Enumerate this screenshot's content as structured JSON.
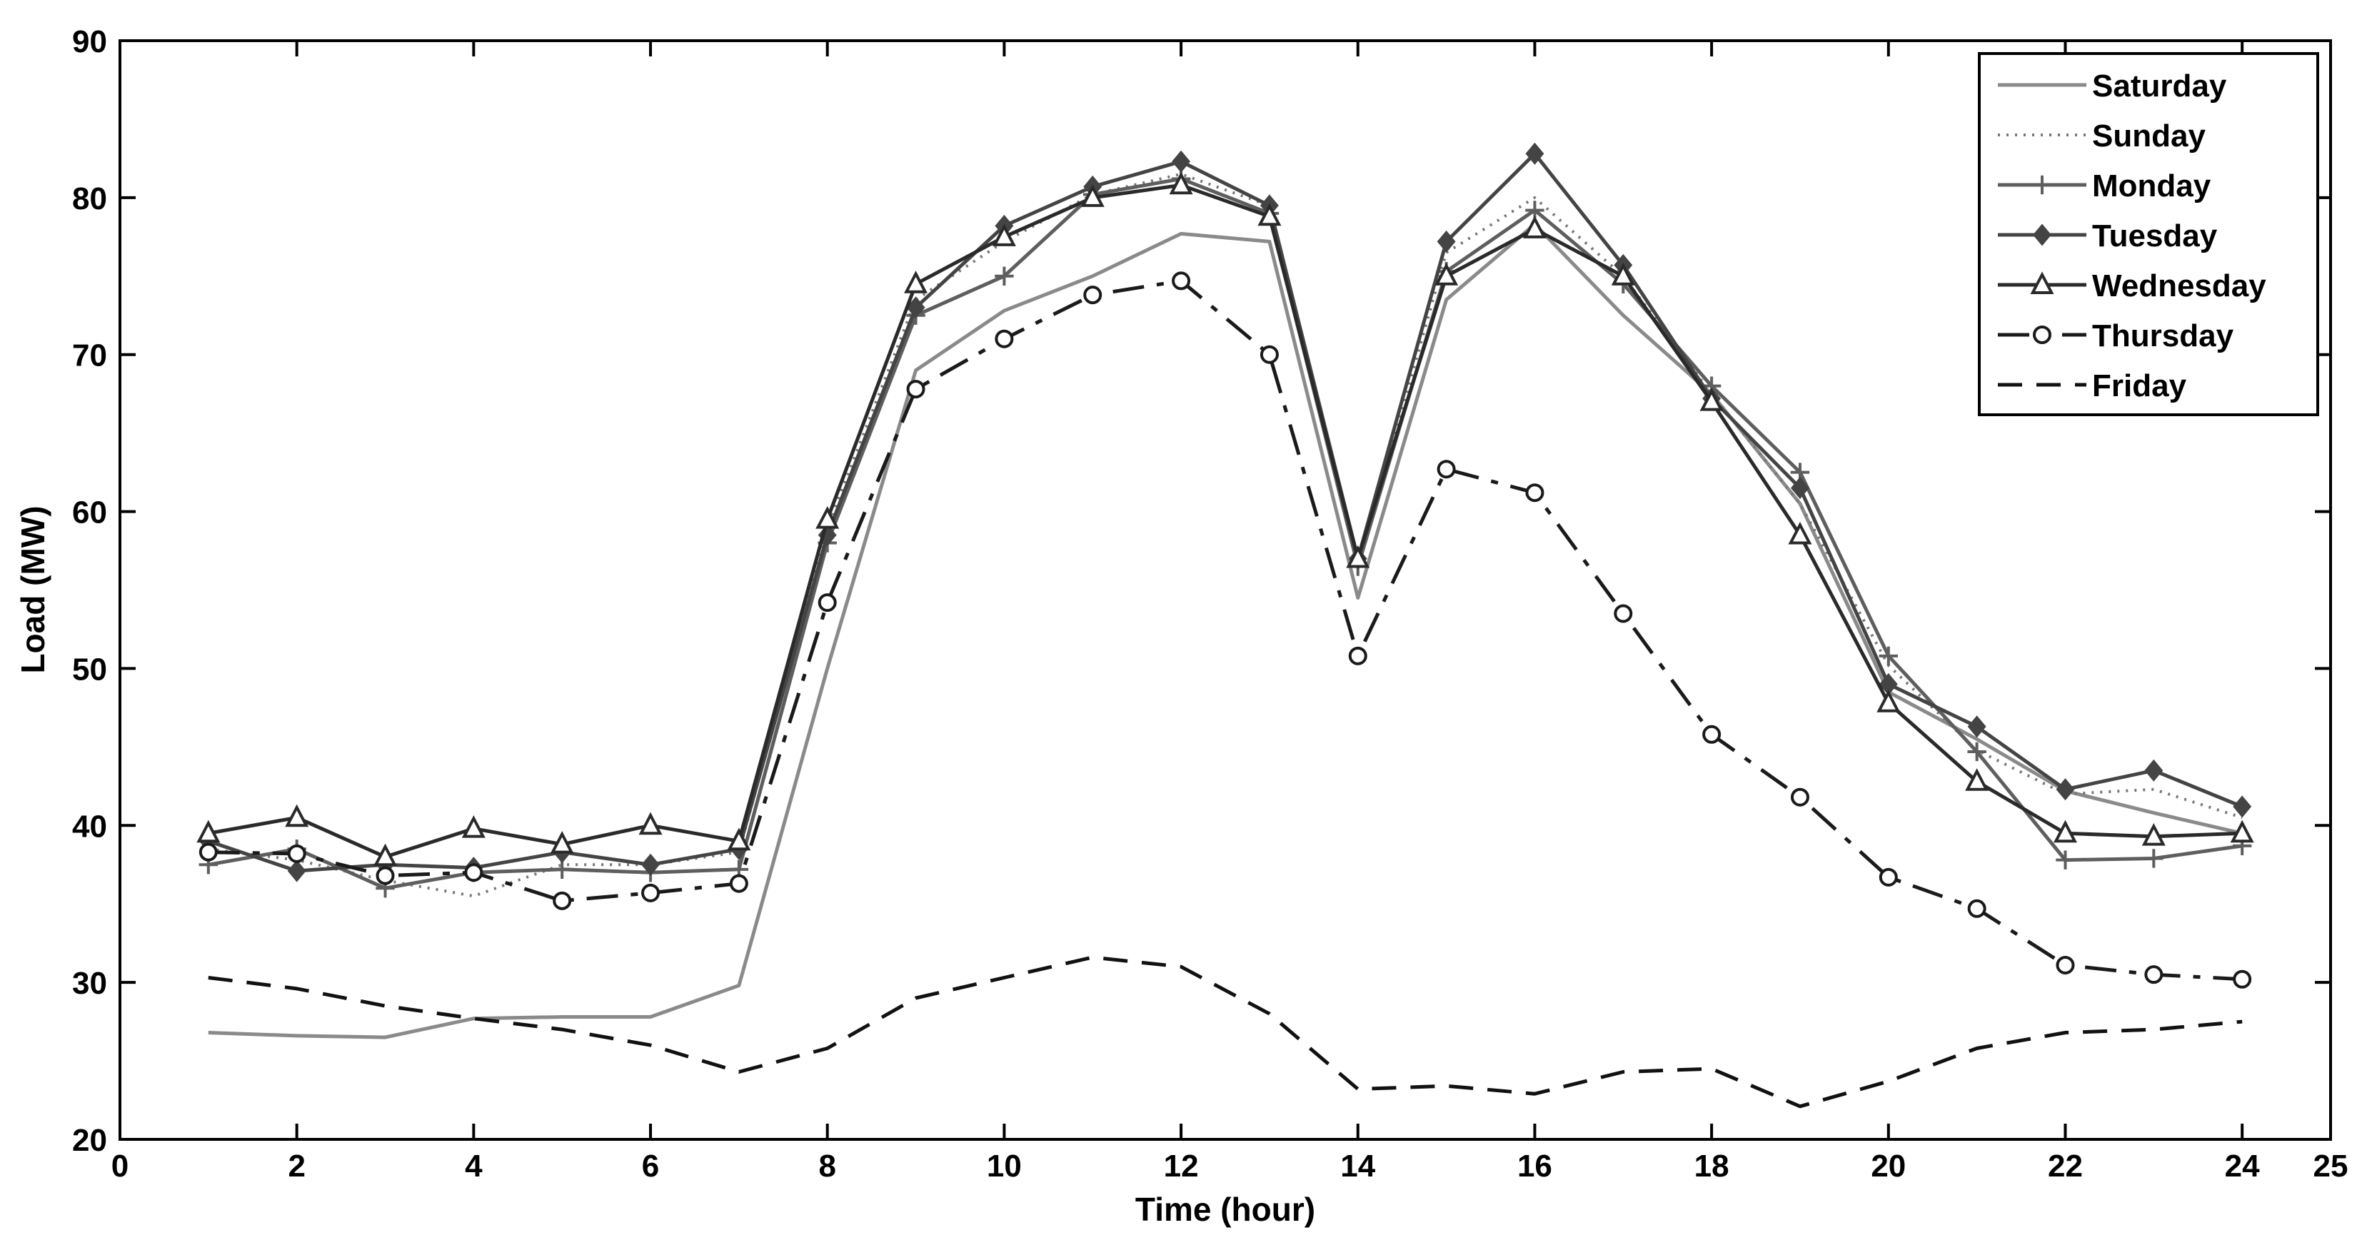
{
  "chart_data": {
    "type": "line",
    "title": "",
    "xlabel": "Time (hour)",
    "ylabel": "Load (MW)",
    "xlim": [
      0,
      25
    ],
    "ylim": [
      20,
      90
    ],
    "xticks": [
      0,
      2,
      4,
      6,
      8,
      10,
      12,
      14,
      16,
      18,
      20,
      22,
      24,
      25
    ],
    "yticks": [
      20,
      30,
      40,
      50,
      60,
      70,
      80,
      90
    ],
    "grid": false,
    "legend_position": "top-right",
    "x": [
      1,
      2,
      3,
      4,
      5,
      6,
      7,
      8,
      9,
      10,
      11,
      12,
      13,
      14,
      15,
      16,
      17,
      18,
      19,
      20,
      21,
      22,
      23,
      24
    ],
    "series": [
      {
        "name": "Saturday",
        "color": "#8a8a8a",
        "dash": "solid",
        "marker": "none",
        "values": [
          26.8,
          26.6,
          26.5,
          27.7,
          27.8,
          27.8,
          29.8,
          50,
          69,
          72.8,
          75,
          77.7,
          77.2,
          54.5,
          73.5,
          78.3,
          72.5,
          67.5,
          60.5,
          48.5,
          45.5,
          42.2,
          40.8,
          39.5
        ]
      },
      {
        "name": "Sunday",
        "color": "#777777",
        "dash": "dotted",
        "marker": "none",
        "values": [
          38.5,
          37.8,
          36.5,
          35.5,
          37.5,
          37.5,
          38.3,
          59,
          73.5,
          77.2,
          80.2,
          81.5,
          79.5,
          56.5,
          76.5,
          80,
          75,
          67.5,
          60.5,
          50.2,
          44.8,
          42,
          42.3,
          40.5
        ]
      },
      {
        "name": "Monday",
        "color": "#5e5e5e",
        "dash": "solid",
        "marker": "plus",
        "values": [
          37.5,
          38.5,
          36,
          37,
          37.2,
          37,
          37.2,
          58,
          72.5,
          75,
          80.2,
          81.2,
          79,
          56.5,
          75.3,
          79.2,
          74.5,
          68,
          62.5,
          50.8,
          44.7,
          37.8,
          37.9,
          38.7
        ]
      },
      {
        "name": "Tuesday",
        "color": "#444444",
        "dash": "solid",
        "marker": "diamond",
        "values": [
          39,
          37.1,
          37.5,
          37.3,
          38.3,
          37.5,
          38.5,
          58.5,
          73,
          78.2,
          80.7,
          82.3,
          79.5,
          57,
          77.2,
          82.8,
          75.7,
          67.2,
          61.5,
          49,
          46.3,
          42.3,
          43.5,
          41.2
        ]
      },
      {
        "name": "Wednesday",
        "color": "#2a2a2a",
        "dash": "solid",
        "marker": "triangle",
        "values": [
          39.5,
          40.5,
          38,
          39.8,
          38.8,
          40,
          39,
          59.5,
          74.5,
          77.5,
          80,
          80.8,
          78.8,
          57,
          75,
          78,
          75,
          67,
          58.5,
          47.8,
          42.8,
          39.5,
          39.3,
          39.5
        ]
      },
      {
        "name": "Thursday",
        "color": "#1a1a1a",
        "dash": "dash-long",
        "marker": "circle",
        "values": [
          38.3,
          38.2,
          36.8,
          37,
          35.2,
          35.7,
          36.3,
          54.2,
          67.8,
          71,
          73.8,
          74.7,
          70,
          50.8,
          62.7,
          61.2,
          53.5,
          45.8,
          41.8,
          36.7,
          34.7,
          31.1,
          30.5,
          30.2
        ]
      },
      {
        "name": "Friday",
        "color": "#111111",
        "dash": "dashed",
        "marker": "none",
        "values": [
          30.3,
          29.6,
          28.5,
          27.7,
          27,
          26,
          24.3,
          25.8,
          29,
          30.3,
          31.6,
          31,
          28,
          23.2,
          23.4,
          22.9,
          24.3,
          24.5,
          22.1,
          23.7,
          25.8,
          26.8,
          27,
          27.5
        ]
      }
    ]
  }
}
